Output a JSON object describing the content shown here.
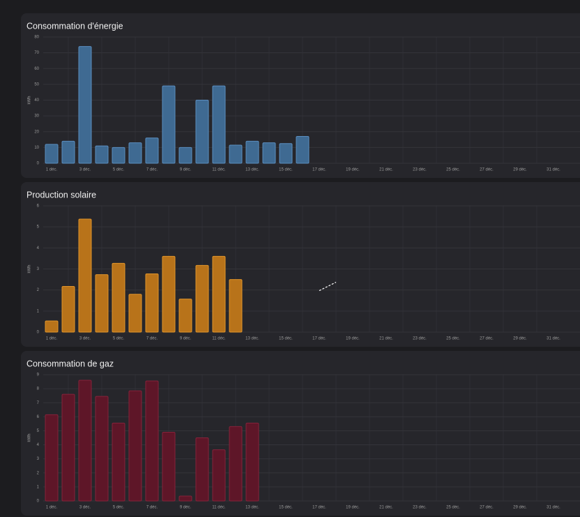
{
  "chart_data": [
    {
      "type": "bar",
      "title": "Consommation d'énergie",
      "y_label": "kWh",
      "categories": [
        "1 déc.",
        null,
        "3 déc.",
        null,
        "5 déc.",
        null,
        "7 déc.",
        null,
        "9 déc.",
        null,
        "11 déc.",
        null,
        "13 déc.",
        null,
        "15 déc.",
        null,
        "17 déc.",
        null,
        "19 déc.",
        null,
        "21 déc.",
        null,
        "23 déc.",
        null,
        "25 déc.",
        null,
        "27 déc.",
        null,
        "29 déc.",
        null,
        "31 déc."
      ],
      "series": [
        {
          "type": "bar",
          "color": "#3f6a92",
          "border": "#5a8dbf",
          "values": [
            12,
            14,
            74,
            11,
            10,
            13,
            16,
            49,
            10,
            40,
            49,
            11.5,
            14,
            13,
            12.5,
            17,
            null,
            null,
            null,
            null,
            null,
            null,
            null,
            null,
            null,
            null,
            null,
            null,
            null,
            null,
            null
          ]
        }
      ],
      "ylim": [
        0,
        80
      ],
      "yticks": [
        0,
        10,
        20,
        30,
        40,
        50,
        60,
        70,
        80
      ],
      "grid": true
    },
    {
      "type": "bar",
      "title": "Production solaire",
      "y_label": "kWh",
      "categories": [
        "1 déc.",
        null,
        "3 déc.",
        null,
        "5 déc.",
        null,
        "7 déc.",
        null,
        "9 déc.",
        null,
        "11 déc.",
        null,
        "13 déc.",
        null,
        "15 déc.",
        null,
        "17 déc.",
        null,
        "19 déc.",
        null,
        "21 déc.",
        null,
        "23 déc.",
        null,
        "25 déc.",
        null,
        "27 déc.",
        null,
        "29 déc.",
        null,
        "31 déc."
      ],
      "series": [
        {
          "type": "bar",
          "color": "#b8731a",
          "border": "#e0942a",
          "values": [
            0.53,
            2.17,
            5.37,
            2.73,
            3.27,
            1.8,
            2.77,
            3.6,
            1.57,
            3.17,
            3.6,
            2.5,
            null,
            null,
            null,
            null,
            null,
            null,
            null,
            null,
            null,
            null,
            null,
            null,
            null,
            null,
            null,
            null,
            null,
            null,
            null
          ]
        },
        {
          "type": "line",
          "color": "#ffffff",
          "dashed": true,
          "values": [
            null,
            null,
            null,
            null,
            null,
            null,
            null,
            null,
            null,
            null,
            null,
            null,
            null,
            null,
            null,
            null,
            1.97,
            2.37,
            null,
            null,
            null,
            null,
            null,
            null,
            null,
            null,
            null,
            null,
            null,
            null,
            null
          ]
        }
      ],
      "ylim": [
        0,
        6
      ],
      "yticks": [
        0,
        1,
        2,
        3,
        4,
        5,
        6
      ],
      "grid": true
    },
    {
      "type": "bar",
      "title": "Consommation de gaz",
      "y_label": "kWh",
      "categories": [
        "1 déc.",
        null,
        "3 déc.",
        null,
        "5 déc.",
        null,
        "7 déc.",
        null,
        "9 déc.",
        null,
        "11 déc.",
        null,
        "13 déc.",
        null,
        "15 déc.",
        null,
        "17 déc.",
        null,
        "19 déc.",
        null,
        "21 déc.",
        null,
        "23 déc.",
        null,
        "25 déc.",
        null,
        "27 déc.",
        null,
        "29 déc.",
        null,
        "31 déc."
      ],
      "series": [
        {
          "type": "bar",
          "color": "#5e1628",
          "border": "#85223a",
          "values": [
            6.15,
            7.6,
            8.6,
            7.45,
            5.55,
            7.85,
            8.55,
            4.9,
            0.35,
            4.5,
            3.65,
            5.3,
            5.55,
            null,
            null,
            null,
            null,
            null,
            null,
            null,
            null,
            null,
            null,
            null,
            null,
            null,
            null,
            null,
            null,
            null,
            null
          ]
        }
      ],
      "ylim": [
        0,
        9
      ],
      "yticks": [
        0,
        1,
        2,
        3,
        4,
        5,
        6,
        7,
        8,
        9
      ],
      "grid": true
    }
  ]
}
